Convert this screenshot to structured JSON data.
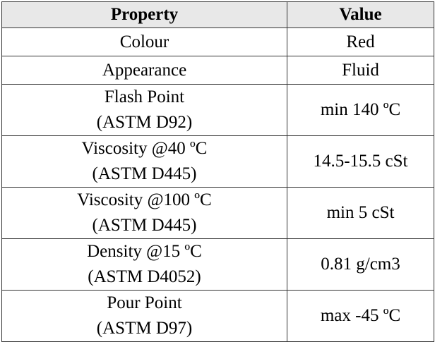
{
  "table": {
    "headers": {
      "property": "Property",
      "value": "Value"
    },
    "rows": [
      {
        "property_line1": "Colour",
        "property_line2": "",
        "value": "Red"
      },
      {
        "property_line1": "Appearance",
        "property_line2": "",
        "value": "Fluid"
      },
      {
        "property_line1": "Flash Point",
        "property_line2": "(ASTM D92)",
        "value": "min 140 ºC"
      },
      {
        "property_line1": "Viscosity @40 ºC",
        "property_line2": "(ASTM D445)",
        "value": "14.5-15.5 cSt"
      },
      {
        "property_line1": "Viscosity @100 ºC",
        "property_line2": "(ASTM D445)",
        "value": "min 5 cSt"
      },
      {
        "property_line1": "Density @15 ºC",
        "property_line2": "(ASTM D4052)",
        "value": "0.81 g/cm3"
      },
      {
        "property_line1": "Pour Point",
        "property_line2": "(ASTM D97)",
        "value": "max -45 ºC"
      }
    ]
  },
  "colors": {
    "header_background": "#e8e8e8",
    "border": "#333333"
  }
}
